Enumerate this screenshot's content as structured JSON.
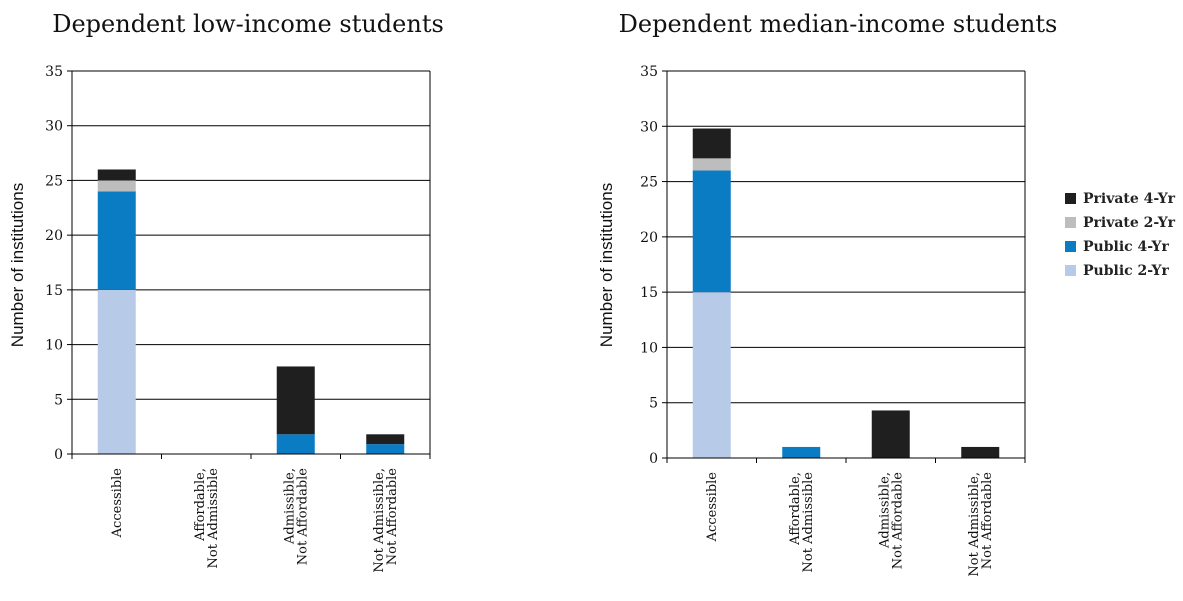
{
  "colors": {
    "Public 2-Yr": "#b7cbe8",
    "Public 4-Yr": "#0a7cc4",
    "Private 2-Yr": "#bdbdbd",
    "Private 4-Yr": "#1f1f1f"
  },
  "legend": {
    "placement": "right",
    "items": [
      "Private 4-Yr",
      "Private 2-Yr",
      "Public 4-Yr",
      "Public 2-Yr"
    ]
  },
  "chart_data": [
    {
      "type": "bar",
      "stacked": true,
      "title": "Dependent low-income students",
      "ylabel": "Number of institutions",
      "xlabel": "",
      "ylim": [
        0,
        35
      ],
      "yticks": [
        0,
        5,
        10,
        15,
        20,
        25,
        30,
        35
      ],
      "grid": true,
      "categories": [
        [
          "Accessible"
        ],
        [
          "Affordable,",
          "Not Admissible"
        ],
        [
          "Admissible,",
          "Not Affordable"
        ],
        [
          "Not Admissible,",
          "Not Affordable"
        ]
      ],
      "series": [
        {
          "name": "Public 2-Yr",
          "values": [
            15,
            0,
            0,
            0
          ]
        },
        {
          "name": "Public 4-Yr",
          "values": [
            9,
            0,
            1.8,
            0.9
          ]
        },
        {
          "name": "Private 2-Yr",
          "values": [
            1,
            0,
            0,
            0
          ]
        },
        {
          "name": "Private 4-Yr",
          "values": [
            1,
            0,
            6.2,
            0.9
          ]
        }
      ]
    },
    {
      "type": "bar",
      "stacked": true,
      "title": "Dependent median-income students",
      "ylabel": "Number of institutions",
      "xlabel": "",
      "ylim": [
        0,
        35
      ],
      "yticks": [
        0,
        5,
        10,
        15,
        20,
        25,
        30,
        35
      ],
      "grid": true,
      "categories": [
        [
          "Accessible"
        ],
        [
          "Affordable,",
          "Not Admissible"
        ],
        [
          "Admissible,",
          "Not Affordable"
        ],
        [
          "Not Admissible,",
          "Not Affordable"
        ]
      ],
      "series": [
        {
          "name": "Public 2-Yr",
          "values": [
            15,
            0,
            0,
            0
          ]
        },
        {
          "name": "Public 4-Yr",
          "values": [
            11,
            1,
            0,
            0
          ]
        },
        {
          "name": "Private 2-Yr",
          "values": [
            1.1,
            0,
            0,
            0
          ]
        },
        {
          "name": "Private 4-Yr",
          "values": [
            2.7,
            0,
            4.3,
            1
          ]
        }
      ]
    }
  ]
}
